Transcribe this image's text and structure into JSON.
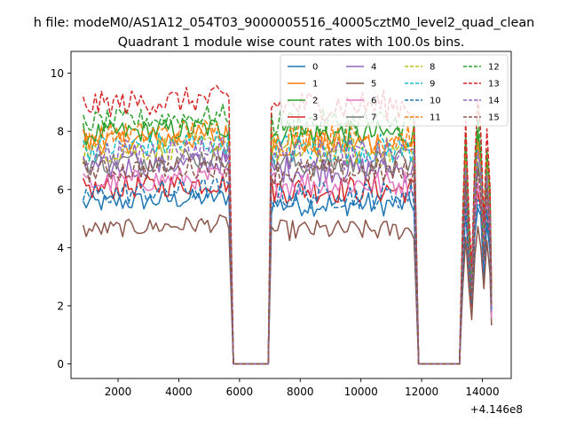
{
  "chart_data": {
    "type": "line",
    "suptitle": "h file: modeM0/AS1A12_054T03_9000005516_40005cztM0_level2_quad_clean",
    "title": "Quadrant 1 module wise count rates with 100.0s bins.",
    "xlabel": "",
    "ylabel": "",
    "x_offset_label": "+4.146e8",
    "xlim": [
      450,
      14950
    ],
    "ylim": [
      -0.5,
      10.75
    ],
    "x_ticks": [
      2000,
      4000,
      6000,
      8000,
      10000,
      12000,
      14000
    ],
    "x_tick_labels": [
      "2000",
      "4000",
      "6000",
      "8000",
      "10000",
      "12000",
      "14000"
    ],
    "y_ticks": [
      0,
      2,
      4,
      6,
      8,
      10
    ],
    "y_tick_labels": [
      "0",
      "2",
      "4",
      "6",
      "8",
      "10"
    ],
    "grid": false,
    "legend_position": "top-right",
    "legend_columns": 4,
    "gaps": [
      [
        5800,
        6950
      ],
      [
        11900,
        13250
      ]
    ],
    "segments": [
      [
        850,
        5700
      ],
      [
        7050,
        11800
      ],
      [
        13350,
        14300
      ]
    ],
    "series": [
      {
        "name": "0",
        "color": "#1f77b4",
        "dash": "solid",
        "level": 5.5,
        "noise": 0.35
      },
      {
        "name": "1",
        "color": "#ff7f0e",
        "dash": "solid",
        "level": 7.6,
        "noise": 0.45
      },
      {
        "name": "2",
        "color": "#2ca02c",
        "dash": "solid",
        "level": 7.9,
        "noise": 0.4
      },
      {
        "name": "3",
        "color": "#d62728",
        "dash": "solid",
        "level": 6.0,
        "noise": 0.4
      },
      {
        "name": "4",
        "color": "#9467bd",
        "dash": "solid",
        "level": 6.7,
        "noise": 0.4
      },
      {
        "name": "5",
        "color": "#8c564b",
        "dash": "solid",
        "level": 4.6,
        "noise": 0.3
      },
      {
        "name": "6",
        "color": "#e377c2",
        "dash": "solid",
        "level": 6.2,
        "noise": 0.4
      },
      {
        "name": "7",
        "color": "#7f7f7f",
        "dash": "solid",
        "level": 6.9,
        "noise": 0.4
      },
      {
        "name": "8",
        "color": "#bcbd22",
        "dash": "dashed",
        "level": 7.3,
        "noise": 0.45
      },
      {
        "name": "9",
        "color": "#17becf",
        "dash": "dashed",
        "level": 7.4,
        "noise": 0.45
      },
      {
        "name": "10",
        "color": "#1f77b4",
        "dash": "dashed",
        "level": 5.8,
        "noise": 0.4
      },
      {
        "name": "11",
        "color": "#ff7f0e",
        "dash": "dashed",
        "level": 7.8,
        "noise": 0.45
      },
      {
        "name": "12",
        "color": "#2ca02c",
        "dash": "dashed",
        "level": 8.3,
        "noise": 0.4
      },
      {
        "name": "13",
        "color": "#d62728",
        "dash": "dashed",
        "level": 8.9,
        "noise": 0.45
      },
      {
        "name": "14",
        "color": "#9467bd",
        "dash": "dashed",
        "level": 7.2,
        "noise": 0.45
      },
      {
        "name": "15",
        "color": "#8c564b",
        "dash": "dashed",
        "level": 6.6,
        "noise": 0.4
      }
    ]
  }
}
